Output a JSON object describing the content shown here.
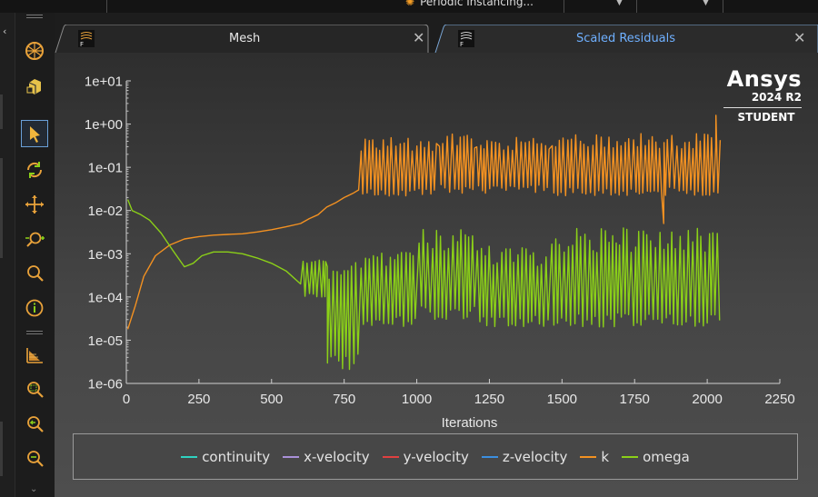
{
  "topbar": {
    "instancing_label": "Periodic Instancing..."
  },
  "tabs": [
    {
      "label": "Mesh",
      "active": false
    },
    {
      "label": "Scaled Residuals",
      "active": true
    }
  ],
  "brand": {
    "name": "Ansys",
    "version": "2024 R2",
    "edition": "STUDENT"
  },
  "toolbar_icons": [
    "geometry-sphere-icon",
    "cube-icon",
    "select-pointer-icon",
    "rotate-icon",
    "pan-icon",
    "zoom-in-out-icon",
    "zoom-icon",
    "info-icon",
    "plot-icon",
    "zoom-box-icon",
    "zoom-previous-icon",
    "zoom-fit-icon"
  ],
  "colors": {
    "continuity": "#2fd2c0",
    "x-velocity": "#a990d8",
    "y-velocity": "#e04040",
    "z-velocity": "#3b8fe0",
    "k": "#f39121",
    "omega": "#8bd018",
    "tab_active_text": "#6fb0ff"
  },
  "chart_data": {
    "type": "line",
    "xlabel": "Iterations",
    "ylabel": "",
    "xlim": [
      0,
      2250
    ],
    "ylim": [
      1e-06,
      10
    ],
    "yscale": "log",
    "xticks": [
      "0",
      "250",
      "500",
      "750",
      "1000",
      "1250",
      "1500",
      "1750",
      "2000",
      "2250"
    ],
    "yticks": [
      "1e+01",
      "1e+00",
      "1e-01",
      "1e-02",
      "1e-03",
      "1e-04",
      "1e-05",
      "1e-06"
    ],
    "legend": [
      "continuity",
      "x-velocity",
      "y-velocity",
      "z-velocity",
      "k",
      "omega"
    ],
    "legend_position": "bottom",
    "series": [
      {
        "name": "k",
        "points": [
          [
            5,
            1.8e-05
          ],
          [
            30,
            6e-05
          ],
          [
            60,
            0.0003
          ],
          [
            100,
            0.0009
          ],
          [
            150,
            0.0016
          ],
          [
            200,
            0.0022
          ],
          [
            250,
            0.0025
          ],
          [
            300,
            0.0027
          ],
          [
            350,
            0.0028
          ],
          [
            400,
            0.0029
          ],
          [
            450,
            0.0032
          ],
          [
            500,
            0.0036
          ],
          [
            550,
            0.0042
          ],
          [
            600,
            0.005
          ],
          [
            630,
            0.0065
          ],
          [
            660,
            0.008
          ],
          [
            690,
            0.012
          ],
          [
            720,
            0.015
          ],
          [
            750,
            0.02
          ],
          [
            780,
            0.025
          ],
          [
            800,
            0.03
          ]
        ],
        "oscillation": [
          {
            "from": 650,
            "to": 800,
            "low": 0.008,
            "high": 0.07
          },
          {
            "from": 800,
            "to": 1070,
            "low": 0.02,
            "high": 0.5
          },
          {
            "from": 1070,
            "to": 1200,
            "low": 0.025,
            "high": 0.6
          },
          {
            "from": 1200,
            "to": 1460,
            "low": 0.025,
            "high": 0.5
          },
          {
            "from": 1460,
            "to": 2045,
            "low": 0.022,
            "high": 0.6
          }
        ],
        "events": [
          [
            1850,
            0.005
          ],
          [
            2030,
            1.6
          ]
        ]
      },
      {
        "name": "omega",
        "points": [
          [
            5,
            0.018
          ],
          [
            20,
            0.01
          ],
          [
            50,
            0.008
          ],
          [
            80,
            0.006
          ],
          [
            120,
            0.003
          ],
          [
            160,
            0.0012
          ],
          [
            200,
            0.0005
          ],
          [
            230,
            0.0006
          ],
          [
            260,
            0.0009
          ],
          [
            300,
            0.0011
          ],
          [
            350,
            0.0011
          ],
          [
            400,
            0.001
          ],
          [
            450,
            0.0008
          ],
          [
            500,
            0.0006
          ],
          [
            550,
            0.0004
          ],
          [
            600,
            0.0002
          ]
        ],
        "oscillation": [
          {
            "from": 550,
            "to": 700,
            "low": 0.0001,
            "high": 0.0008
          },
          {
            "from": 680,
            "to": 800,
            "low": 2e-06,
            "high": 0.001
          },
          {
            "from": 800,
            "to": 1000,
            "low": 2e-05,
            "high": 0.0012
          },
          {
            "from": 1000,
            "to": 1200,
            "low": 3e-05,
            "high": 0.004
          },
          {
            "from": 1200,
            "to": 1460,
            "low": 2e-05,
            "high": 0.0015
          },
          {
            "from": 1460,
            "to": 2045,
            "low": 2e-05,
            "high": 0.004
          }
        ]
      }
    ]
  }
}
